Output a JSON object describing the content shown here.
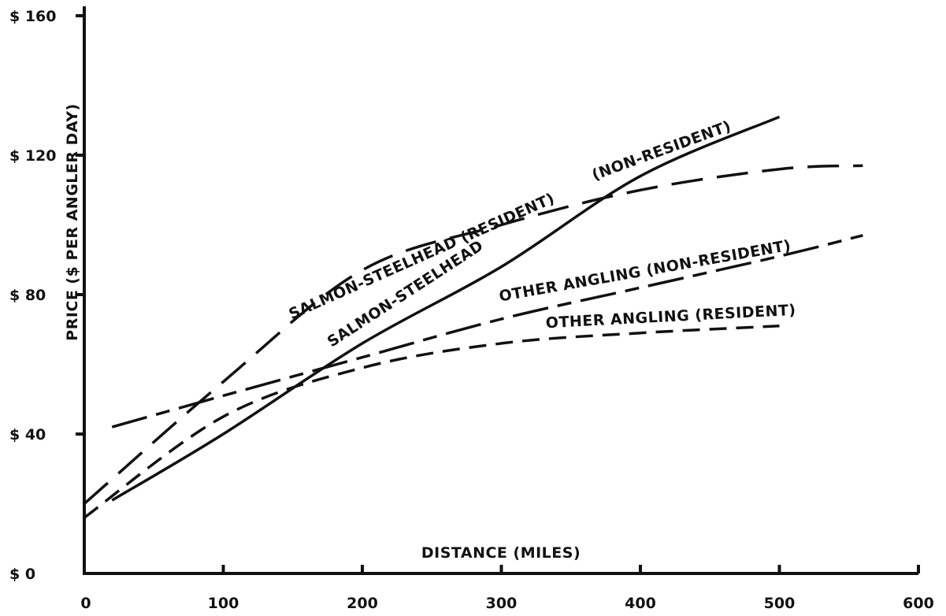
{
  "chart_data": {
    "type": "line",
    "xlabel": "DISTANCE (MILES)",
    "ylabel": "PRICE ($ PER ANGLER DAY)",
    "xlim": [
      0,
      600
    ],
    "ylim": [
      0,
      160
    ],
    "x_ticks": [
      0,
      100,
      200,
      300,
      400,
      500,
      600
    ],
    "x_tick_labels": [
      "0",
      "100",
      "200",
      "300",
      "400",
      "500",
      "600"
    ],
    "y_ticks": [
      0,
      40,
      80,
      120,
      160
    ],
    "y_tick_labels": [
      "$ 0",
      "$ 40",
      "$ 80",
      "$ 120",
      "$ 160"
    ],
    "grid": false,
    "legend": "none",
    "series": [
      {
        "name": "SALMON-STEELHEAD (NON-RESIDENT)",
        "style": "solid",
        "x": [
          20,
          100,
          200,
          300,
          400,
          500
        ],
        "y": [
          21,
          40,
          66,
          88,
          114,
          131
        ]
      },
      {
        "name": "SALMON-STEELHEAD (RESIDENT)",
        "style": "long-dash",
        "x": [
          0,
          100,
          200,
          300,
          400,
          500,
          560
        ],
        "y": [
          20,
          55,
          87,
          100,
          110,
          116,
          117
        ]
      },
      {
        "name": "OTHER ANGLING (NON-RESIDENT)",
        "style": "long-short-dash",
        "x": [
          20,
          100,
          200,
          300,
          400,
          500,
          560
        ],
        "y": [
          42,
          51,
          62,
          73,
          82,
          91,
          97
        ]
      },
      {
        "name": "OTHER ANGLING (RESIDENT)",
        "style": "short-dash",
        "x": [
          0,
          100,
          200,
          300,
          400,
          500
        ],
        "y": [
          16,
          45,
          59,
          66,
          69,
          71
        ]
      }
    ],
    "annotations": [
      {
        "text": "SALMON-STEELHEAD",
        "series": 0
      },
      {
        "text": "(NON-RESIDENT)",
        "series": 0
      },
      {
        "text": "SALMON-STEELHEAD (RESIDENT)",
        "series": 1
      },
      {
        "text": "OTHER ANGLING (NON-RESIDENT)",
        "series": 2
      },
      {
        "text": "OTHER ANGLING (RESIDENT)",
        "series": 3
      }
    ]
  }
}
